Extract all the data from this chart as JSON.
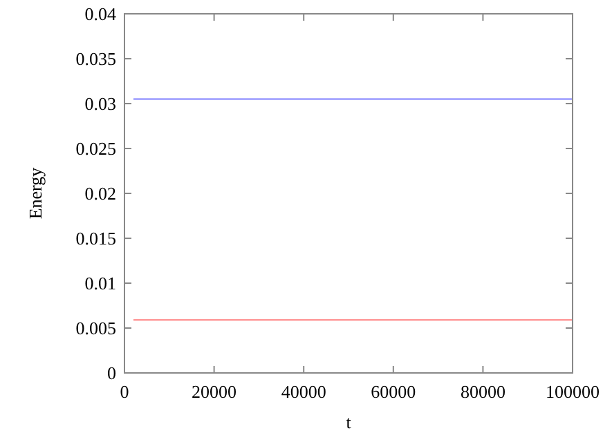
{
  "chart_data": {
    "type": "line",
    "xlabel": "t",
    "ylabel": "Energy",
    "xlim": [
      0,
      100000
    ],
    "xticks": [
      0,
      20000,
      40000,
      60000,
      80000,
      100000
    ],
    "ylim": [
      0,
      0.04
    ],
    "yticks": [
      0,
      0.005,
      0.01,
      0.015,
      0.02,
      0.025,
      0.03,
      0.035,
      0.04
    ],
    "grid": false,
    "x": [
      2000,
      100000
    ],
    "series": [
      {
        "color": "#9a9aff",
        "values": [
          0.0305,
          0.0305
        ]
      },
      {
        "color": "#ff9a9a",
        "values": [
          0.0059,
          0.0059
        ]
      }
    ]
  }
}
